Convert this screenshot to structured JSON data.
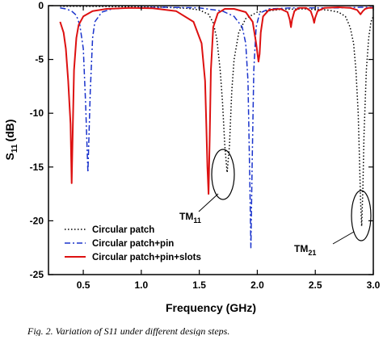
{
  "chart_data": {
    "type": "line",
    "xlabel": "Frequency (GHz)",
    "ylabel_main": "S",
    "ylabel_sub": "11",
    "ylabel_unit": "(dB)",
    "xlim": [
      0.2,
      3.0
    ],
    "ylim": [
      -25,
      0
    ],
    "xticks": [
      0.5,
      1.0,
      1.5,
      2.0,
      2.5,
      3.0
    ],
    "xtick_labels": [
      "0.5",
      "1.0",
      "1.5",
      "2.0",
      "2.5",
      "3.0"
    ],
    "yticks": [
      0,
      -5,
      -10,
      -15,
      -20,
      -25
    ],
    "ytick_labels": [
      "0",
      "-5",
      "-10",
      "-15",
      "-20",
      "-25"
    ],
    "grid": false,
    "legend_position": "bottom-left",
    "series": [
      {
        "name": "Circular patch",
        "color": "#000000",
        "style": "dotted",
        "x": [
          0.3,
          0.6,
          0.9,
          1.2,
          1.4,
          1.5,
          1.58,
          1.62,
          1.65,
          1.68,
          1.7,
          1.72,
          1.74,
          1.76,
          1.78,
          1.8,
          1.84,
          1.9,
          2.0,
          2.2,
          2.4,
          2.6,
          2.7,
          2.76,
          2.8,
          2.83,
          2.85,
          2.87,
          2.88,
          2.89,
          2.9,
          2.91,
          2.92,
          2.94,
          2.96,
          2.98,
          3.0
        ],
        "y": [
          -0.05,
          -0.07,
          -0.1,
          -0.15,
          -0.25,
          -0.4,
          -0.8,
          -1.6,
          -3.0,
          -6.0,
          -9.0,
          -13.0,
          -15.5,
          -13.0,
          -8.0,
          -5.0,
          -2.5,
          -1.2,
          -0.6,
          -0.35,
          -0.3,
          -0.4,
          -0.6,
          -1.0,
          -2.0,
          -3.5,
          -6.0,
          -10.0,
          -14.0,
          -18.0,
          -20.5,
          -17.0,
          -12.0,
          -6.0,
          -3.0,
          -1.5,
          -1.0
        ]
      },
      {
        "name": "Circular patch+pin",
        "color": "#1a33cc",
        "style": "dashdot",
        "x": [
          0.3,
          0.35,
          0.4,
          0.44,
          0.47,
          0.5,
          0.52,
          0.54,
          0.56,
          0.58,
          0.6,
          0.66,
          0.75,
          0.9,
          1.2,
          1.5,
          1.7,
          1.8,
          1.87,
          1.9,
          1.92,
          1.935,
          1.945,
          1.955,
          1.97,
          1.99,
          2.02,
          2.1,
          2.3,
          2.5,
          2.7,
          2.9,
          3.0
        ],
        "y": [
          -0.2,
          -0.3,
          -0.5,
          -0.9,
          -1.8,
          -4.0,
          -9.0,
          -15.5,
          -8.0,
          -3.0,
          -1.5,
          -0.6,
          -0.3,
          -0.2,
          -0.15,
          -0.2,
          -0.5,
          -1.0,
          -2.0,
          -3.5,
          -7.0,
          -16.0,
          -22.5,
          -15.0,
          -6.0,
          -2.0,
          -0.7,
          -0.3,
          -0.2,
          -0.2,
          -0.2,
          -0.15,
          -0.15
        ]
      },
      {
        "name": "Circular patch+pin+slots",
        "color": "#dd1111",
        "style": "solid",
        "x": [
          0.3,
          0.33,
          0.35,
          0.37,
          0.39,
          0.4,
          0.41,
          0.42,
          0.44,
          0.46,
          0.5,
          0.58,
          0.7,
          0.9,
          1.1,
          1.3,
          1.45,
          1.52,
          1.55,
          1.56,
          1.57,
          1.58,
          1.59,
          1.6,
          1.62,
          1.66,
          1.72,
          1.8,
          1.9,
          1.96,
          1.99,
          2.01,
          2.02,
          2.03,
          2.05,
          2.1,
          2.2,
          2.26,
          2.28,
          2.29,
          2.3,
          2.32,
          2.36,
          2.42,
          2.46,
          2.48,
          2.49,
          2.5,
          2.52,
          2.58,
          2.7,
          2.8,
          2.86,
          2.89,
          2.91,
          2.93,
          2.96,
          3.0
        ],
        "y": [
          -1.5,
          -2.5,
          -4.0,
          -7.0,
          -11.0,
          -16.5,
          -11.0,
          -6.0,
          -3.0,
          -1.8,
          -1.0,
          -0.5,
          -0.3,
          -0.2,
          -0.25,
          -0.5,
          -1.5,
          -3.5,
          -7.0,
          -11.0,
          -15.0,
          -17.5,
          -12.0,
          -6.0,
          -2.0,
          -0.7,
          -0.3,
          -0.3,
          -0.6,
          -1.5,
          -3.5,
          -5.2,
          -4.5,
          -2.5,
          -1.0,
          -0.4,
          -0.3,
          -0.6,
          -1.3,
          -2.0,
          -1.3,
          -0.5,
          -0.2,
          -0.2,
          -0.5,
          -1.1,
          -1.6,
          -1.1,
          -0.5,
          -0.2,
          -0.15,
          -0.2,
          -0.4,
          -0.8,
          -0.5,
          -0.3,
          -0.2,
          -0.2
        ]
      }
    ],
    "annotations": [
      {
        "label": "TM",
        "sub": "11"
      },
      {
        "label": "TM",
        "sub": "21"
      }
    ]
  },
  "caption": "Fig. 2.  Variation of S11 under different design steps."
}
